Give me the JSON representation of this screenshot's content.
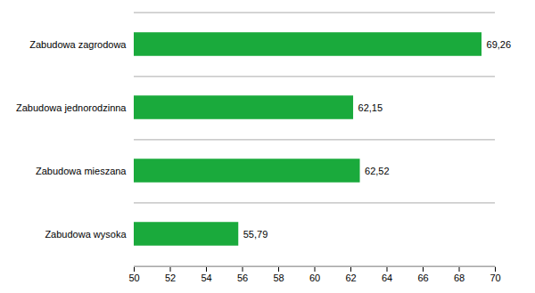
{
  "chart_data": {
    "type": "bar",
    "orientation": "horizontal",
    "categories": [
      "Zabudowa zagrodowa",
      "Zabudowa jednorodzinna",
      "Zabudowa mieszana",
      "Zabudowa wysoka"
    ],
    "values": [
      69.26,
      62.15,
      62.52,
      55.79
    ],
    "value_labels": [
      "69,26",
      "62,15",
      "62,52",
      "55,79"
    ],
    "data_labels": true,
    "color": "#1aaa3c",
    "xlim": [
      50,
      70
    ],
    "xticks": [
      50,
      52,
      54,
      56,
      58,
      60,
      62,
      64,
      66,
      68,
      70
    ],
    "grid": true
  }
}
